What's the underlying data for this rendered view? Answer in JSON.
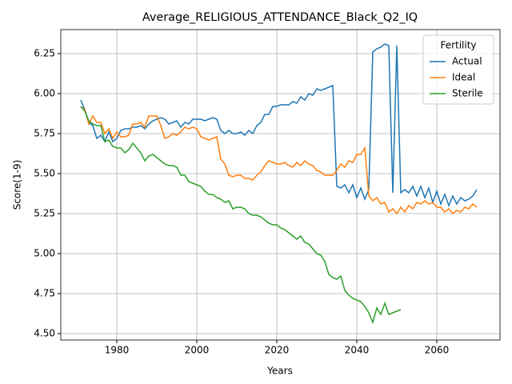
{
  "chart_data": {
    "type": "line",
    "title": "Average_RELIGIOUS_ATTENDANCE_Black_Q2_IQ",
    "xlabel": "Years",
    "ylabel": "Score(1-9)",
    "x": [
      1971,
      1972,
      1973,
      1974,
      1975,
      1976,
      1977,
      1978,
      1979,
      1980,
      1981,
      1982,
      1983,
      1984,
      1985,
      1986,
      1987,
      1988,
      1989,
      1990,
      1991,
      1992,
      1993,
      1994,
      1995,
      1996,
      1997,
      1998,
      1999,
      2000,
      2001,
      2002,
      2003,
      2004,
      2005,
      2006,
      2007,
      2008,
      2009,
      2010,
      2011,
      2012,
      2013,
      2014,
      2015,
      2016,
      2017,
      2018,
      2019,
      2020,
      2021,
      2022,
      2023,
      2024,
      2025,
      2026,
      2027,
      2028,
      2029,
      2030,
      2031,
      2032,
      2033,
      2034,
      2035,
      2036,
      2037,
      2038,
      2039,
      2040,
      2041,
      2042,
      2043,
      2044,
      2045,
      2046,
      2047,
      2048,
      2049,
      2050,
      2051,
      2052,
      2053,
      2054,
      2055,
      2056,
      2057,
      2058,
      2059,
      2060,
      2061,
      2062,
      2063,
      2064,
      2065,
      2066,
      2067,
      2068,
      2069,
      2070
    ],
    "series": [
      {
        "name": "Actual",
        "color": "#1f77b4",
        "values": [
          5.96,
          5.9,
          5.82,
          5.8,
          5.72,
          5.74,
          5.7,
          5.76,
          5.7,
          5.72,
          5.77,
          5.78,
          5.78,
          5.79,
          5.79,
          5.8,
          5.78,
          5.81,
          5.83,
          5.84,
          5.85,
          5.84,
          5.81,
          5.82,
          5.83,
          5.79,
          5.82,
          5.81,
          5.84,
          5.84,
          5.84,
          5.83,
          5.84,
          5.85,
          5.84,
          5.77,
          5.75,
          5.77,
          5.75,
          5.75,
          5.76,
          5.74,
          5.77,
          5.75,
          5.8,
          5.82,
          5.87,
          5.87,
          5.92,
          5.92,
          5.93,
          5.93,
          5.93,
          5.95,
          5.94,
          5.98,
          5.96,
          6.0,
          5.99,
          6.03,
          6.02,
          6.03,
          6.04,
          6.05,
          5.42,
          5.41,
          5.43,
          5.38,
          5.43,
          5.35,
          5.41,
          5.34,
          5.4,
          6.26,
          6.28,
          6.29,
          6.31,
          6.3,
          5.38,
          6.3,
          5.38,
          5.4,
          5.38,
          5.42,
          5.36,
          5.42,
          5.35,
          5.41,
          5.32,
          5.39,
          5.31,
          5.37,
          5.3,
          5.36,
          5.31,
          5.35,
          5.33,
          5.34,
          5.36,
          5.4
        ]
      },
      {
        "name": "Ideal",
        "color": "#ff7f0e",
        "values": [
          5.92,
          5.9,
          5.81,
          5.86,
          5.82,
          5.82,
          5.75,
          5.78,
          5.72,
          5.76,
          5.73,
          5.73,
          5.74,
          5.81,
          5.81,
          5.82,
          5.79,
          5.86,
          5.86,
          5.86,
          5.8,
          5.72,
          5.73,
          5.75,
          5.74,
          5.76,
          5.79,
          5.78,
          5.79,
          5.78,
          5.73,
          5.72,
          5.71,
          5.72,
          5.73,
          5.59,
          5.56,
          5.49,
          5.48,
          5.49,
          5.49,
          5.47,
          5.47,
          5.46,
          5.49,
          5.51,
          5.55,
          5.58,
          5.57,
          5.56,
          5.56,
          5.57,
          5.55,
          5.54,
          5.57,
          5.55,
          5.58,
          5.56,
          5.55,
          5.52,
          5.51,
          5.49,
          5.49,
          5.49,
          5.52,
          5.56,
          5.54,
          5.58,
          5.57,
          5.62,
          5.62,
          5.66,
          5.36,
          5.33,
          5.35,
          5.31,
          5.32,
          5.26,
          5.28,
          5.25,
          5.29,
          5.26,
          5.3,
          5.28,
          5.32,
          5.31,
          5.33,
          5.31,
          5.32,
          5.29,
          5.29,
          5.26,
          5.28,
          5.25,
          5.27,
          5.26,
          5.29,
          5.28,
          5.31,
          5.29
        ]
      },
      {
        "name": "Sterile",
        "color": "#2ca02c",
        "values": [
          5.92,
          5.89,
          5.83,
          5.81,
          5.8,
          5.8,
          5.7,
          5.71,
          5.67,
          5.66,
          5.66,
          5.63,
          5.65,
          5.69,
          5.66,
          5.63,
          5.58,
          5.61,
          5.62,
          5.6,
          5.58,
          5.56,
          5.55,
          5.55,
          5.54,
          5.49,
          5.49,
          5.45,
          5.44,
          5.43,
          5.42,
          5.39,
          5.37,
          5.37,
          5.35,
          5.34,
          5.32,
          5.33,
          5.28,
          5.29,
          5.29,
          5.28,
          5.25,
          5.24,
          5.24,
          5.23,
          5.21,
          5.19,
          5.18,
          5.18,
          5.16,
          5.15,
          5.13,
          5.11,
          5.09,
          5.11,
          5.07,
          5.06,
          5.03,
          5.0,
          4.99,
          4.95,
          4.87,
          4.85,
          4.84,
          4.86,
          4.77,
          4.74,
          4.72,
          4.71,
          4.7,
          4.67,
          4.63,
          4.57,
          4.66,
          4.62,
          4.69,
          4.62,
          4.63,
          4.64,
          4.65,
          null,
          null,
          null,
          null,
          null,
          null,
          null,
          null,
          null,
          null,
          null,
          null,
          null,
          null,
          null,
          null,
          null,
          null,
          null
        ]
      }
    ],
    "xlim": [
      1966,
      2075.8
    ],
    "ylim": [
      4.46,
      6.4
    ],
    "xticks": [
      1980,
      2000,
      2020,
      2040,
      2060
    ],
    "yticks": [
      {
        "value": 4.5,
        "label": "4.50"
      },
      {
        "value": 4.75,
        "label": "4.75"
      },
      {
        "value": 5.0,
        "label": "5.00"
      },
      {
        "value": 5.25,
        "label": "5.25"
      },
      {
        "value": 5.5,
        "label": "5.50"
      },
      {
        "value": 5.75,
        "label": "5.75"
      },
      {
        "value": 6.0,
        "label": "6.00"
      },
      {
        "value": 6.25,
        "label": "6.25"
      }
    ],
    "grid": true,
    "legend_title": "Fertility",
    "legend_position": "upper-right"
  }
}
